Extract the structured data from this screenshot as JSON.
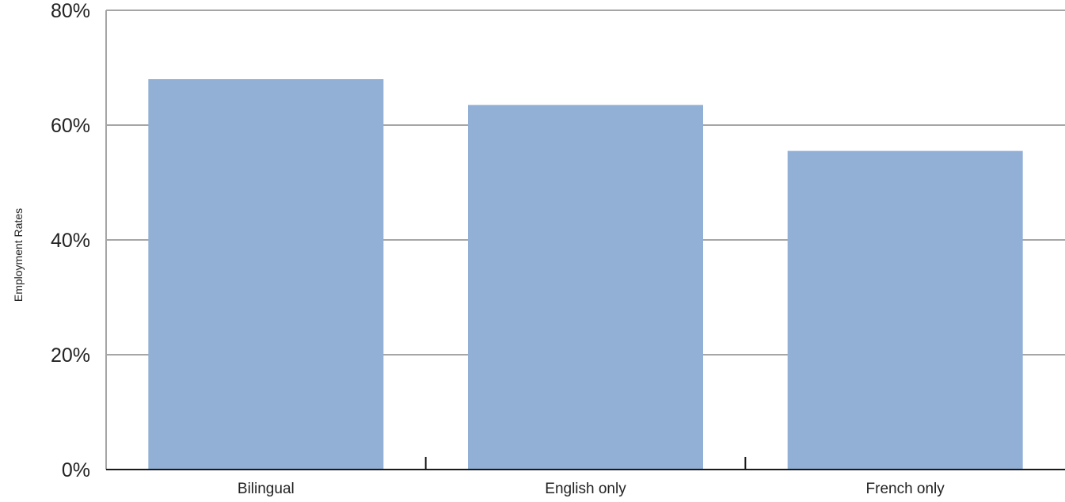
{
  "chart_data": {
    "type": "bar",
    "title": "",
    "xlabel": "",
    "ylabel": "Employment Rates",
    "categories": [
      "Bilingual",
      "English only",
      "French only"
    ],
    "values": [
      68,
      63.5,
      55.5
    ],
    "unit": "%",
    "ylim": [
      0,
      80
    ],
    "yticks": [
      0,
      20,
      40,
      60,
      80
    ],
    "ytick_labels": [
      "0%",
      "20%",
      "40%",
      "60%",
      "80%"
    ],
    "grid": true,
    "legend": "none",
    "colors": {
      "bar": "#92afd5",
      "grid": "#a6a6a6",
      "axis": "#1a1a1a",
      "text": "#222222"
    }
  }
}
